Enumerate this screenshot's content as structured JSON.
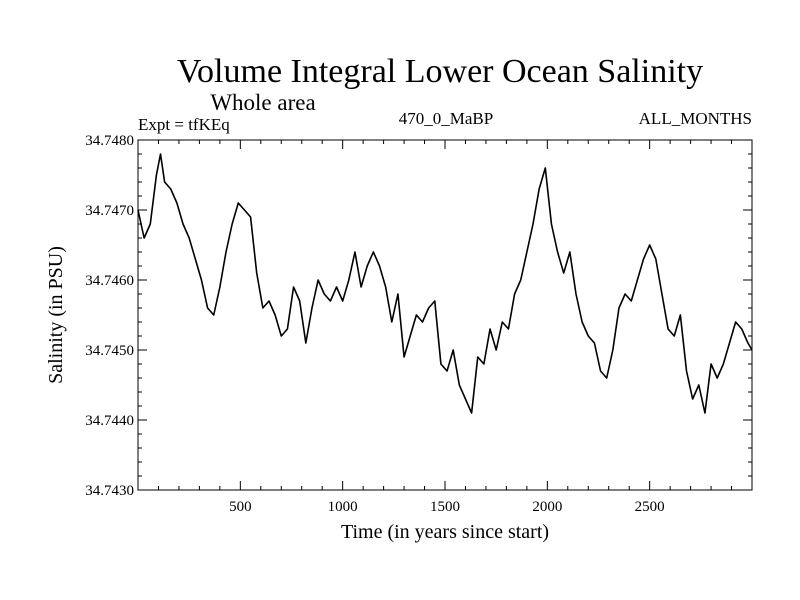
{
  "chart_data": {
    "type": "line",
    "title": "Volume Integral Lower Ocean Salinity",
    "subtitle": "Whole area",
    "left_label": "Expt = tfKEq",
    "center_label": "470_0_MaBP",
    "right_label": "ALL_MONTHS",
    "xlabel": "Time (in years since start)",
    "ylabel": "Salinity (in PSU)",
    "xlim": [
      0,
      3000
    ],
    "ylim": [
      34.743,
      34.748
    ],
    "x_ticks": [
      500,
      1000,
      1500,
      2000,
      2500
    ],
    "x_tick_labels": [
      "500",
      "1000",
      "1500",
      "2000",
      "2500"
    ],
    "y_ticks": [
      34.743,
      34.744,
      34.745,
      34.746,
      34.747,
      34.748
    ],
    "y_tick_labels": [
      "34.7430",
      "34.7440",
      "34.7450",
      "34.7460",
      "34.7470",
      "34.7480"
    ],
    "grid": false,
    "line_color": "#000000",
    "series": [
      {
        "x": [
          0,
          30,
          60,
          90,
          110,
          130,
          160,
          190,
          220,
          250,
          280,
          310,
          340,
          370,
          400,
          430,
          460,
          490,
          520,
          550,
          580,
          610,
          640,
          670,
          700,
          730,
          760,
          790,
          820,
          850,
          880,
          910,
          940,
          970,
          1000,
          1030,
          1060,
          1090,
          1120,
          1150,
          1180,
          1210,
          1240,
          1270,
          1300,
          1330,
          1360,
          1390,
          1420,
          1450,
          1480,
          1510,
          1540,
          1570,
          1600,
          1630,
          1660,
          1690,
          1720,
          1750,
          1780,
          1810,
          1840,
          1870,
          1900,
          1930,
          1960,
          1990,
          2020,
          2050,
          2080,
          2110,
          2140,
          2170,
          2200,
          2230,
          2260,
          2290,
          2320,
          2350,
          2380,
          2410,
          2440,
          2470,
          2500,
          2530,
          2560,
          2590,
          2620,
          2650,
          2680,
          2710,
          2740,
          2770,
          2800,
          2830,
          2860,
          2890,
          2920,
          2950,
          2980,
          3000
        ],
        "y": [
          34.747,
          34.7466,
          34.7468,
          34.7475,
          34.7478,
          34.7474,
          34.7473,
          34.7471,
          34.7468,
          34.7466,
          34.7463,
          34.746,
          34.7456,
          34.7455,
          34.7459,
          34.7464,
          34.7468,
          34.7471,
          34.747,
          34.7469,
          34.7461,
          34.7456,
          34.7457,
          34.7455,
          34.7452,
          34.7453,
          34.7459,
          34.7457,
          34.7451,
          34.7456,
          34.746,
          34.7458,
          34.7457,
          34.7459,
          34.7457,
          34.746,
          34.7464,
          34.7459,
          34.7462,
          34.7464,
          34.7462,
          34.7459,
          34.7454,
          34.7458,
          34.7449,
          34.7452,
          34.7455,
          34.7454,
          34.7456,
          34.7457,
          34.7448,
          34.7447,
          34.745,
          34.7445,
          34.7443,
          34.7441,
          34.7449,
          34.7448,
          34.7453,
          34.745,
          34.7454,
          34.7453,
          34.7458,
          34.746,
          34.7464,
          34.7468,
          34.7473,
          34.7476,
          34.7468,
          34.7464,
          34.7461,
          34.7464,
          34.7458,
          34.7454,
          34.7452,
          34.7451,
          34.7447,
          34.7446,
          34.745,
          34.7456,
          34.7458,
          34.7457,
          34.746,
          34.7463,
          34.7465,
          34.7463,
          34.7458,
          34.7453,
          34.7452,
          34.7455,
          34.7447,
          34.7443,
          34.7445,
          34.7441,
          34.7448,
          34.7446,
          34.7448,
          34.7451,
          34.7454,
          34.7453,
          34.7451,
          34.745
        ]
      }
    ]
  }
}
